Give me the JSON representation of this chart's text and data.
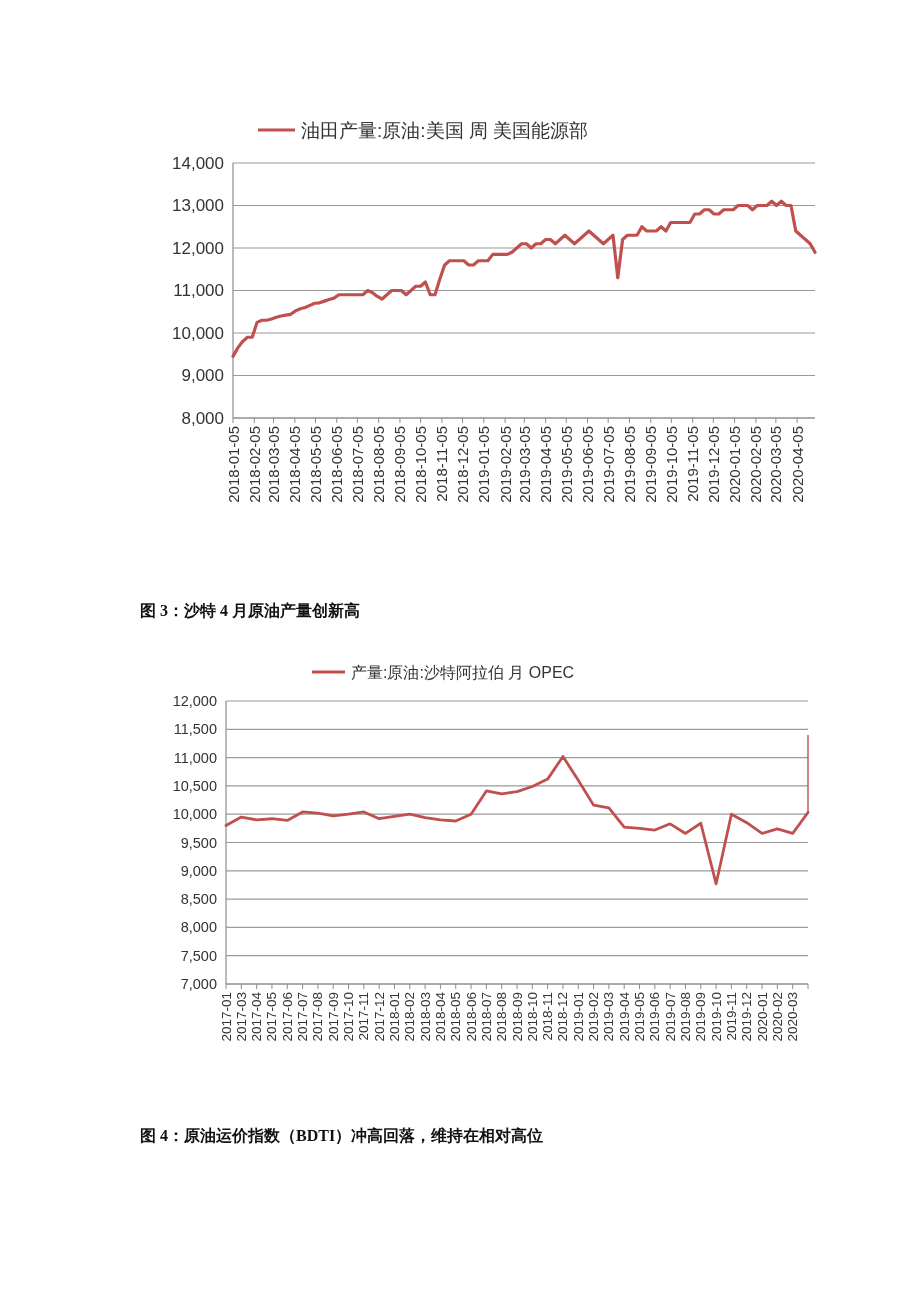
{
  "chart_data": [
    {
      "type": "line",
      "x": [
        "2018-01-05",
        "2018-01-12",
        "2018-01-19",
        "2018-01-26",
        "2018-02-02",
        "2018-02-09",
        "2018-02-16",
        "2018-02-23",
        "2018-03-02",
        "2018-03-09",
        "2018-03-16",
        "2018-03-23",
        "2018-03-30",
        "2018-04-06",
        "2018-04-13",
        "2018-04-20",
        "2018-04-27",
        "2018-05-04",
        "2018-05-11",
        "2018-05-18",
        "2018-05-25",
        "2018-06-01",
        "2018-06-08",
        "2018-06-15",
        "2018-06-22",
        "2018-06-29",
        "2018-07-06",
        "2018-07-13",
        "2018-07-20",
        "2018-07-27",
        "2018-08-03",
        "2018-08-10",
        "2018-08-17",
        "2018-08-24",
        "2018-08-31",
        "2018-09-07",
        "2018-09-14",
        "2018-09-21",
        "2018-09-28",
        "2018-10-05",
        "2018-10-12",
        "2018-10-19",
        "2018-10-26",
        "2018-11-02",
        "2018-11-09",
        "2018-11-16",
        "2018-11-23",
        "2018-11-30",
        "2018-12-07",
        "2018-12-14",
        "2018-12-21",
        "2018-12-28",
        "2019-01-04",
        "2019-01-11",
        "2019-01-18",
        "2019-01-25",
        "2019-02-01",
        "2019-02-08",
        "2019-02-15",
        "2019-02-22",
        "2019-03-01",
        "2019-03-08",
        "2019-03-15",
        "2019-03-22",
        "2019-03-29",
        "2019-04-05",
        "2019-04-12",
        "2019-04-19",
        "2019-04-26",
        "2019-05-03",
        "2019-05-10",
        "2019-05-17",
        "2019-05-24",
        "2019-05-31",
        "2019-06-07",
        "2019-06-14",
        "2019-06-21",
        "2019-06-28",
        "2019-07-05",
        "2019-07-12",
        "2019-07-19",
        "2019-07-26",
        "2019-08-02",
        "2019-08-09",
        "2019-08-16",
        "2019-08-23",
        "2019-08-30",
        "2019-09-06",
        "2019-09-13",
        "2019-09-20",
        "2019-09-27",
        "2019-10-04",
        "2019-10-11",
        "2019-10-18",
        "2019-10-25",
        "2019-11-01",
        "2019-11-08",
        "2019-11-15",
        "2019-11-22",
        "2019-11-29",
        "2019-12-06",
        "2019-12-13",
        "2019-12-20",
        "2019-12-27",
        "2020-01-03",
        "2020-01-10",
        "2020-01-17",
        "2020-01-24",
        "2020-01-31",
        "2020-02-07",
        "2020-02-14",
        "2020-02-21",
        "2020-02-28",
        "2020-03-06",
        "2020-03-13",
        "2020-03-20",
        "2020-03-27",
        "2020-04-03",
        "2020-04-10",
        "2020-04-17",
        "2020-04-24",
        "2020-05-01"
      ],
      "series": [
        {
          "name": "油田产量:原油:美国 周 美国能源部",
          "color": "#c0504d",
          "values": [
            9450,
            9650,
            9800,
            9900,
            9900,
            10250,
            10300,
            10300,
            10330,
            10370,
            10400,
            10420,
            10440,
            10520,
            10570,
            10600,
            10650,
            10700,
            10710,
            10750,
            10790,
            10820,
            10900,
            10900,
            10900,
            10900,
            10900,
            10900,
            11000,
            10950,
            10860,
            10800,
            10900,
            11000,
            11000,
            11000,
            10900,
            11000,
            11100,
            11100,
            11200,
            10900,
            10900,
            11270,
            11600,
            11700,
            11700,
            11700,
            11700,
            11600,
            11600,
            11700,
            11700,
            11700,
            11850,
            11850,
            11850,
            11850,
            11900,
            12000,
            12100,
            12100,
            12000,
            12100,
            12100,
            12200,
            12200,
            12100,
            12200,
            12300,
            12200,
            12100,
            12200,
            12300,
            12400,
            12300,
            12200,
            12100,
            12200,
            12300,
            11300,
            12200,
            12300,
            12300,
            12300,
            12500,
            12400,
            12400,
            12400,
            12500,
            12400,
            12600,
            12600,
            12600,
            12600,
            12600,
            12800,
            12800,
            12900,
            12900,
            12800,
            12800,
            12900,
            12900,
            12900,
            13000,
            13000,
            13000,
            12900,
            13000,
            13000,
            13000,
            13100,
            13000,
            13100,
            13000,
            13000,
            12400,
            12300,
            12200,
            12100,
            11900
          ]
        }
      ],
      "xlim": [
        "2018-01-05",
        "2020-05-01"
      ],
      "xticks": [
        "2018-01-05",
        "2018-02-05",
        "2018-03-05",
        "2018-04-05",
        "2018-05-05",
        "2018-06-05",
        "2018-07-05",
        "2018-08-05",
        "2018-09-05",
        "2018-10-05",
        "2018-11-05",
        "2018-12-05",
        "2019-01-05",
        "2019-02-05",
        "2019-03-05",
        "2019-04-05",
        "2019-05-05",
        "2019-06-05",
        "2019-07-05",
        "2019-08-05",
        "2019-09-05",
        "2019-10-05",
        "2019-11-05",
        "2019-12-05",
        "2020-01-05",
        "2020-02-05",
        "2020-03-05",
        "2020-04-05"
      ],
      "ylim": [
        8000,
        14000
      ],
      "yticks": [
        {
          "value": 8000,
          "label": "8,000"
        },
        {
          "value": 9000,
          "label": "9,000"
        },
        {
          "value": 10000,
          "label": "10,000"
        },
        {
          "value": 11000,
          "label": "11,000"
        },
        {
          "value": 12000,
          "label": "12,000"
        },
        {
          "value": 13000,
          "label": "13,000"
        },
        {
          "value": 14000,
          "label": "14,000"
        }
      ],
      "grid": "y",
      "legend": "top",
      "line_style": "solid"
    },
    {
      "type": "line",
      "title": "图 3：沙特 4 月原油产量创新高",
      "categories": [
        "2017-01",
        "2017-03",
        "2017-04",
        "2017-05",
        "2017-06",
        "2017-07",
        "2017-08",
        "2017-09",
        "2017-10",
        "2017-11",
        "2017-12",
        "2018-01",
        "2018-02",
        "2018-03",
        "2018-04",
        "2018-05",
        "2018-06",
        "2018-07",
        "2018-08",
        "2018-09",
        "2018-10",
        "2018-11",
        "2018-12",
        "2019-01",
        "2019-02",
        "2019-03",
        "2019-04",
        "2019-05",
        "2019-06",
        "2019-07",
        "2019-08",
        "2019-09",
        "2019-10",
        "2019-11",
        "2019-12",
        "2020-01",
        "2020-02",
        "2020-03",
        null
      ],
      "series": [
        {
          "name": "产量:原油:沙特阿拉伯 月 OPEC",
          "color": "#c0504d",
          "values": [
            9800,
            9950,
            9900,
            9920,
            9890,
            10040,
            10020,
            9970,
            10000,
            10040,
            9920,
            9960,
            10000,
            9940,
            9900,
            9880,
            10000,
            10410,
            10360,
            10400,
            10490,
            10620,
            11020,
            10600,
            10160,
            10110,
            9770,
            9750,
            9720,
            9830,
            9660,
            9840,
            8770,
            10000,
            9850,
            9660,
            9740,
            9660,
            10030
          ],
          "errors": [
            null,
            null,
            null,
            null,
            null,
            null,
            null,
            null,
            null,
            null,
            null,
            null,
            null,
            null,
            null,
            null,
            null,
            null,
            null,
            null,
            null,
            null,
            null,
            null,
            null,
            null,
            null,
            null,
            null,
            null,
            null,
            null,
            null,
            null,
            null,
            null,
            null,
            null,
            [
              10030,
              11400
            ]
          ]
        }
      ],
      "ylim": [
        7000,
        12000
      ],
      "yticks": [
        {
          "value": 7000,
          "label": "7,000"
        },
        {
          "value": 7500,
          "label": "7,500"
        },
        {
          "value": 8000,
          "label": "8,000"
        },
        {
          "value": 8500,
          "label": "8,500"
        },
        {
          "value": 9000,
          "label": "9,000"
        },
        {
          "value": 9500,
          "label": "9,500"
        },
        {
          "value": 10000,
          "label": "10,000"
        },
        {
          "value": 10500,
          "label": "10,500"
        },
        {
          "value": 11000,
          "label": "11,000"
        },
        {
          "value": 11500,
          "label": "11,500"
        },
        {
          "value": 12000,
          "label": "12,000"
        }
      ],
      "grid": "y",
      "legend": "top",
      "line_style": "solid",
      "annotations": [
        "图 4：原油运价指数（BDTI）冲高回落，维持在相对高位"
      ]
    }
  ]
}
